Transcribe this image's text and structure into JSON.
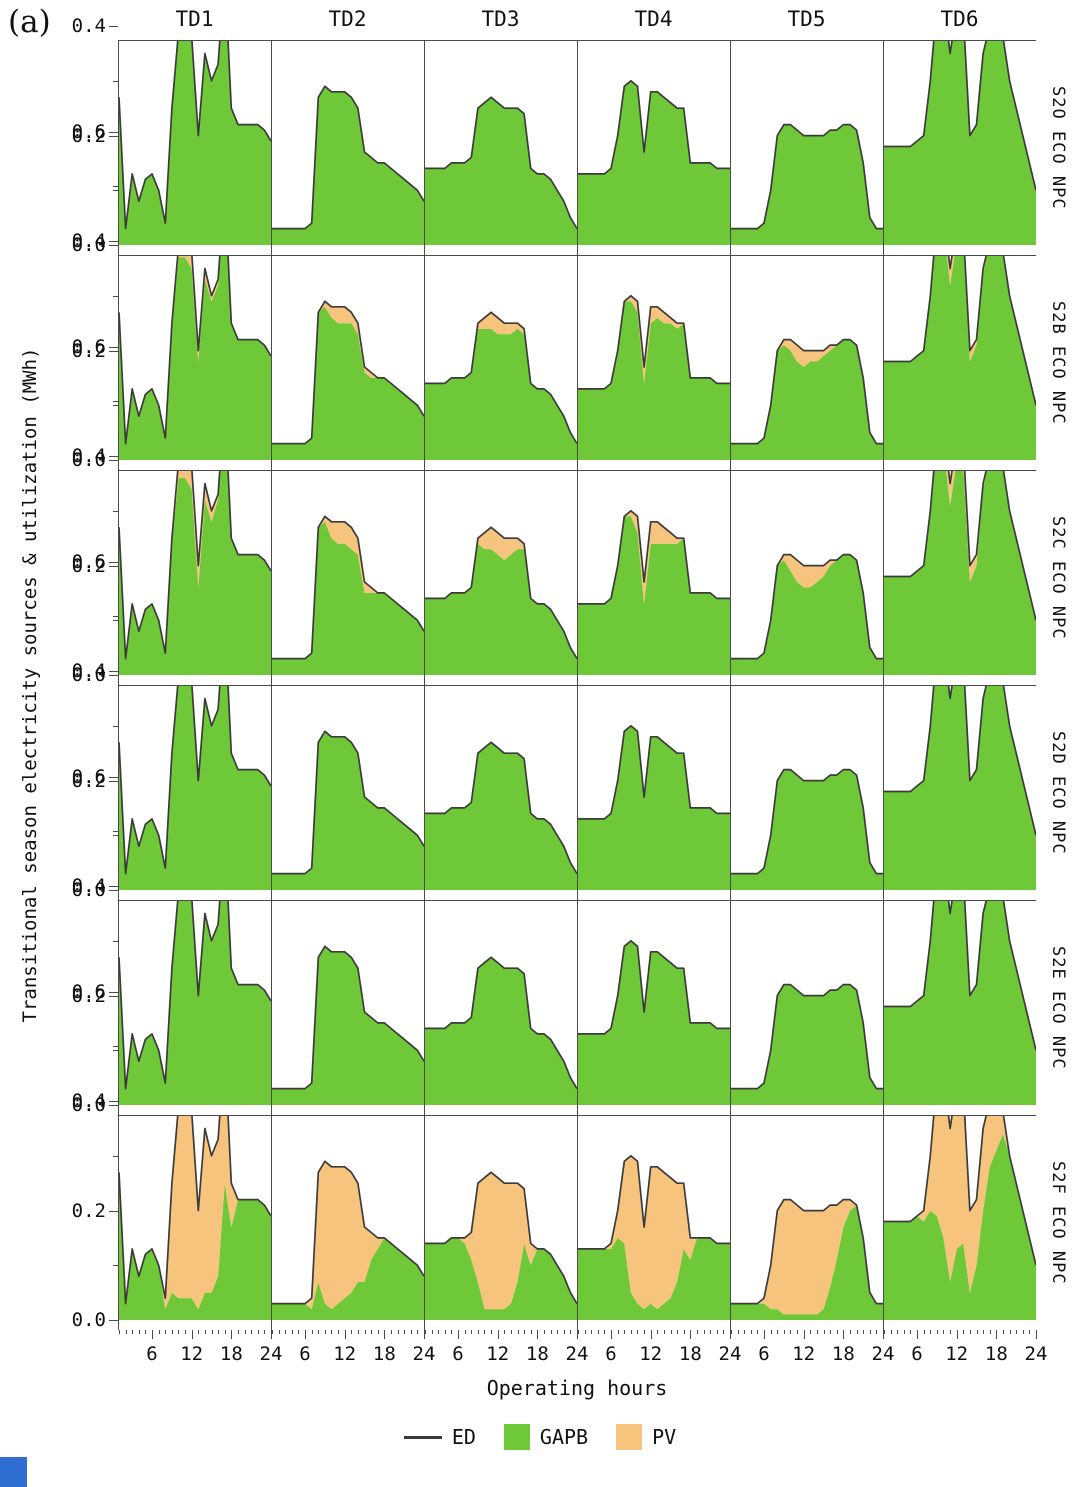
{
  "figure": {
    "corner_label": "(a)"
  },
  "chart_data": {
    "type": "area",
    "stacked": true,
    "xlabel": "Operating hours",
    "ylabel": "Transitional season electricity sources & utilization (MWh)",
    "columns": [
      "TD1",
      "TD2",
      "TD3",
      "TD4",
      "TD5",
      "TD6"
    ],
    "rows": [
      "S2O ECO NPC",
      "S2B ECO NPC",
      "S2C ECO NPC",
      "S2D ECO NPC",
      "S2E ECO NPC",
      "S2F ECO NPC"
    ],
    "x_hours_range": [
      1,
      24
    ],
    "x_ticks": [
      6,
      12,
      18,
      24
    ],
    "y_ticks": [
      "0.0",
      "0.2",
      "0.4",
      "0.6"
    ],
    "y_minor_ticks": [
      0.1,
      0.3,
      0.5
    ],
    "ylim": [
      0,
      0.6
    ],
    "grid": false,
    "legend_position": "bottom",
    "axis_color": "#4a4a4a",
    "legend": [
      {
        "label": "ED",
        "type": "line",
        "color": "#3b3b3b"
      },
      {
        "label": "GAPB",
        "type": "fill",
        "color": "#6fc837"
      },
      {
        "label": "PV",
        "type": "fill",
        "color": "#f7c47e"
      }
    ],
    "ed": {
      "TD1": [
        0.27,
        0.03,
        0.13,
        0.08,
        0.12,
        0.13,
        0.1,
        0.04,
        0.25,
        0.39,
        0.4,
        0.38,
        0.2,
        0.35,
        0.3,
        0.33,
        0.5,
        0.25,
        0.22,
        0.22,
        0.22,
        0.22,
        0.21,
        0.19
      ],
      "TD2": [
        0.03,
        0.03,
        0.03,
        0.03,
        0.03,
        0.03,
        0.04,
        0.27,
        0.29,
        0.28,
        0.28,
        0.28,
        0.27,
        0.25,
        0.17,
        0.16,
        0.15,
        0.15,
        0.14,
        0.13,
        0.12,
        0.11,
        0.1,
        0.08
      ],
      "TD3": [
        0.14,
        0.14,
        0.14,
        0.14,
        0.15,
        0.15,
        0.15,
        0.16,
        0.25,
        0.26,
        0.27,
        0.26,
        0.25,
        0.25,
        0.25,
        0.24,
        0.14,
        0.13,
        0.13,
        0.12,
        0.1,
        0.08,
        0.05,
        0.03
      ],
      "TD4": [
        0.13,
        0.13,
        0.13,
        0.13,
        0.13,
        0.14,
        0.2,
        0.29,
        0.3,
        0.29,
        0.17,
        0.28,
        0.28,
        0.27,
        0.26,
        0.25,
        0.25,
        0.15,
        0.15,
        0.15,
        0.15,
        0.14,
        0.14,
        0.14
      ],
      "TD5": [
        0.03,
        0.03,
        0.03,
        0.03,
        0.03,
        0.04,
        0.1,
        0.2,
        0.22,
        0.22,
        0.21,
        0.2,
        0.2,
        0.2,
        0.2,
        0.21,
        0.21,
        0.22,
        0.22,
        0.21,
        0.15,
        0.05,
        0.03,
        0.03
      ],
      "TD6": [
        0.18,
        0.18,
        0.18,
        0.18,
        0.18,
        0.19,
        0.2,
        0.3,
        0.44,
        0.45,
        0.35,
        0.43,
        0.42,
        0.2,
        0.22,
        0.35,
        0.4,
        0.39,
        0.38,
        0.3,
        0.25,
        0.2,
        0.15,
        0.1
      ]
    },
    "pv": {
      "S2O ECO NPC": null,
      "S2B ECO NPC": {
        "all": [
          0,
          0,
          0,
          0,
          0,
          0,
          0,
          0,
          0.01,
          0.02,
          0.03,
          0.03,
          0.02,
          0.02,
          0.01,
          0.01,
          0,
          0,
          0,
          0,
          0,
          0,
          0,
          0
        ]
      },
      "S2C ECO NPC": {
        "all": [
          0,
          0,
          0,
          0,
          0,
          0,
          0,
          0,
          0.01,
          0.03,
          0.04,
          0.04,
          0.04,
          0.03,
          0.02,
          0.01,
          0,
          0,
          0,
          0,
          0,
          0,
          0,
          0
        ]
      },
      "S2D ECO NPC": null,
      "S2E ECO NPC": null,
      "S2F ECO NPC": {
        "TD1": [
          0,
          0,
          0,
          0,
          0,
          0,
          0,
          0.02,
          0.2,
          0.35,
          0.36,
          0.34,
          0.18,
          0.3,
          0.25,
          0.25,
          0.25,
          0.08,
          0,
          0,
          0,
          0,
          0,
          0
        ],
        "TD2": [
          0,
          0,
          0,
          0,
          0,
          0,
          0.02,
          0.2,
          0.26,
          0.26,
          0.25,
          0.24,
          0.22,
          0.18,
          0.1,
          0.05,
          0.02,
          0,
          0,
          0,
          0,
          0,
          0,
          0
        ],
        "TD3": [
          0,
          0,
          0,
          0,
          0,
          0,
          0.01,
          0.05,
          0.18,
          0.24,
          0.25,
          0.24,
          0.23,
          0.22,
          0.18,
          0.1,
          0.04,
          0,
          0,
          0,
          0,
          0,
          0,
          0
        ],
        "TD4": [
          0,
          0,
          0,
          0,
          0,
          0.01,
          0.05,
          0.15,
          0.25,
          0.26,
          0.15,
          0.25,
          0.26,
          0.24,
          0.22,
          0.18,
          0.12,
          0.04,
          0,
          0,
          0,
          0,
          0,
          0
        ],
        "TD5": [
          0,
          0,
          0,
          0,
          0,
          0.01,
          0.08,
          0.18,
          0.21,
          0.21,
          0.2,
          0.19,
          0.19,
          0.19,
          0.18,
          0.15,
          0.1,
          0.05,
          0.02,
          0,
          0,
          0,
          0,
          0
        ],
        "TD6": [
          0,
          0,
          0,
          0,
          0,
          0,
          0.02,
          0.1,
          0.25,
          0.3,
          0.28,
          0.3,
          0.28,
          0.15,
          0.12,
          0.15,
          0.12,
          0.08,
          0.04,
          0,
          0,
          0,
          0,
          0
        ]
      }
    }
  },
  "misc": {
    "cropped_blue_box_color": "#2f6fd1"
  }
}
